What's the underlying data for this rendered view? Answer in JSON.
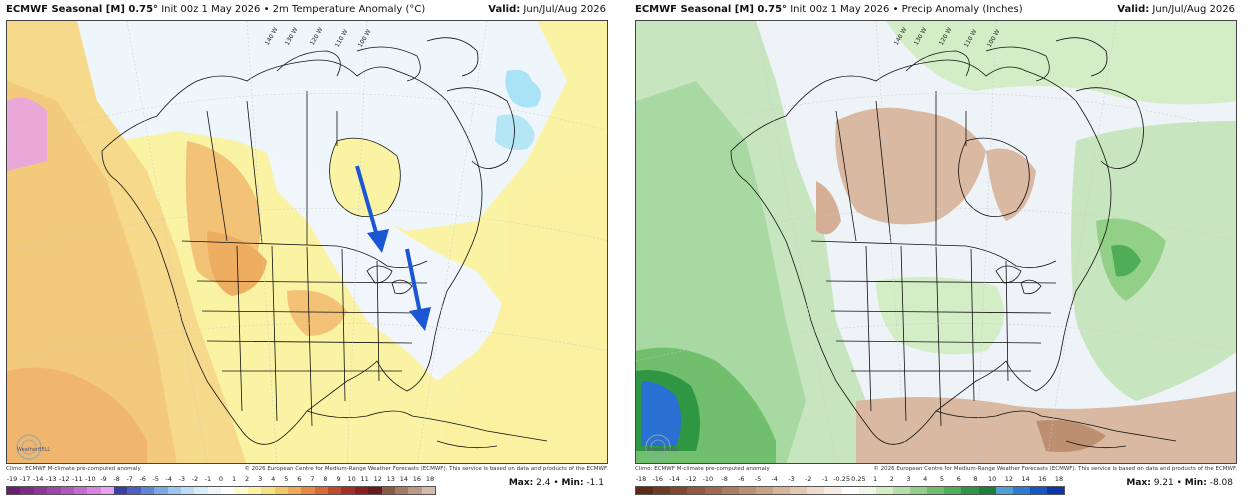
{
  "panels": [
    {
      "title_prefix": "ECMWF Seasonal [M] 0.75°",
      "title_rest": " Init 00z 1 May 2026 • 2m Temperature Anomaly (°C)",
      "valid_label": "Valid:",
      "valid_value": " Jun/Jul/Aug 2026",
      "climo": "Climo: ECMWF M-climate pre-computed anomaly",
      "copyright": "© 2026 European Centre for Medium-Range Weather Forecasts (ECMWF). This service is based on data and products of the ECMWF.",
      "colorbar_ticks": [
        "-19",
        "-17",
        "-14",
        "-13",
        "-12",
        "-11",
        "-10",
        "-9",
        "-8",
        "-7",
        "-6",
        "-5",
        "-4",
        "-3",
        "-2",
        "-1",
        "0",
        "1",
        "2",
        "3",
        "4",
        "5",
        "6",
        "7",
        "8",
        "9",
        "10",
        "11",
        "12",
        "13",
        "14",
        "16",
        "18"
      ],
      "colorbar_colors": [
        "#6b1d6f",
        "#7c2a82",
        "#8e3797",
        "#a044ad",
        "#b357c0",
        "#c56bd1",
        "#d884e0",
        "#e9a2ee",
        "#3a3fa3",
        "#4f5fc0",
        "#5f86d6",
        "#7aaae6",
        "#9bc6ef",
        "#bcdcf5",
        "#d8ecfa",
        "#eef6fc",
        "#ffffff",
        "#fdfbd4",
        "#fbf2a6",
        "#f7e07f",
        "#f3c766",
        "#efaa55",
        "#e88a45",
        "#d96937",
        "#c44a2d",
        "#a52f27",
        "#882021",
        "#6a1a1c",
        "#8a5a44",
        "#a57a62",
        "#bd9a85",
        "#d4bba9"
      ],
      "max_label": "Max:",
      "max_value": "2.4",
      "min_label": "Min:",
      "min_value": "-1.1",
      "lon_labels": [
        "140 W",
        "130 W",
        "120 W",
        "110 W",
        "100 W"
      ]
    },
    {
      "title_prefix": "ECMWF Seasonal [M] 0.75°",
      "title_rest": " Init 00z 1 May 2026 • Precip Anomaly (Inches)",
      "valid_label": "Valid:",
      "valid_value": " Jun/Jul/Aug 2026",
      "climo": "Climo: ECMWF M-climate pre-computed anomaly",
      "copyright": "© 2026 European Centre for Medium-Range Weather Forecasts (ECMWF). This service is based on data and products of the ECMWF.",
      "colorbar_ticks": [
        "-18",
        "-16",
        "-14",
        "-12",
        "-10",
        "-8",
        "-6",
        "-5",
        "-4",
        "-3",
        "-2",
        "-1",
        "-0.25",
        "0.25",
        "1",
        "2",
        "3",
        "4",
        "5",
        "6",
        "8",
        "10",
        "12",
        "14",
        "16",
        "18"
      ],
      "colorbar_colors": [
        "#5e2a15",
        "#6f3a22",
        "#80492f",
        "#915a3d",
        "#a06b4c",
        "#ae7d5d",
        "#bc8f70",
        "#c9a284",
        "#d6b59a",
        "#e2c8b1",
        "#eddbcb",
        "#f6ece3",
        "#ffffff",
        "#eef7e8",
        "#d3edc7",
        "#b4e0a7",
        "#92d088",
        "#6fbf6c",
        "#4ead55",
        "#2f9743",
        "#1f7f3a",
        "#4fa0d6",
        "#2c7bd0",
        "#1655c4",
        "#0b35a8"
      ],
      "max_label": "Max:",
      "max_value": "9.21",
      "min_label": "Min:",
      "min_value": "-8.08",
      "lon_labels": [
        "140 W",
        "130 W",
        "120 W",
        "110 W",
        "100 W"
      ]
    }
  ],
  "logo_text": "WeatherBELL",
  "colors": {
    "temp_warm_light": "#fbf3a4",
    "temp_warm_mid": "#f7dc86",
    "temp_warm_orange": "#f2c277",
    "temp_cool_light": "#e9f4fb",
    "temp_cool_blue": "#a9e3f5",
    "precip_dry": "#d9b9a2",
    "precip_wet_light": "#c7e6c0",
    "precip_wet_mid": "#7fc67a",
    "precip_wet_dark": "#3f9a52",
    "precip_very_wet": "#2a6fd2",
    "arrow_blue": "#1b56d3"
  }
}
